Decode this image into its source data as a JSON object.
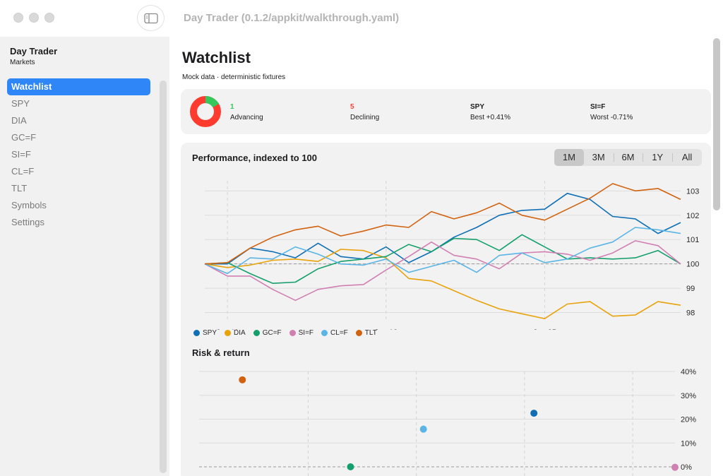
{
  "window": {
    "title": "Day Trader (0.1.2/appkit/walkthrough.yaml)"
  },
  "sidebar": {
    "app_name": "Day Trader",
    "app_subtitle": "Markets",
    "items": [
      {
        "label": "Watchlist",
        "active": true
      },
      {
        "label": "SPY"
      },
      {
        "label": "DIA"
      },
      {
        "label": "GC=F"
      },
      {
        "label": "SI=F"
      },
      {
        "label": "CL=F"
      },
      {
        "label": "TLT"
      },
      {
        "label": "Symbols"
      },
      {
        "label": "Settings"
      }
    ]
  },
  "main": {
    "title": "Watchlist",
    "subtitle": "Mock data · deterministic fixtures",
    "summary": {
      "advancing": {
        "value": "1",
        "label": "Advancing",
        "color": "#34c759"
      },
      "declining": {
        "value": "5",
        "label": "Declining",
        "color": "#ff3b30"
      },
      "best": {
        "symbol": "SPY",
        "label": "Best +0.41%"
      },
      "worst": {
        "symbol": "SI=F",
        "label": "Worst -0.71%"
      }
    },
    "performance": {
      "title": "Performance, indexed to 100",
      "ranges": [
        "1M",
        "3M",
        "6M",
        "1Y",
        "All"
      ],
      "selected_range": "1M"
    },
    "risk": {
      "title": "Risk & return"
    }
  },
  "chart_data": [
    {
      "type": "line",
      "title": "Performance, indexed to 100",
      "x_ticks": [
        {
          "label": "Jun 11",
          "index": 1
        },
        {
          "label": "Jun 18",
          "index": 8
        },
        {
          "label": "Jun 25",
          "index": 15
        }
      ],
      "ylim": [
        97.9,
        103.3
      ],
      "y_ticks": [
        98,
        99,
        100,
        101,
        102,
        103
      ],
      "baseline": 100,
      "legend_position": "bottom-left",
      "series": [
        {
          "name": "SPY",
          "color": "#0f6fb5",
          "values": [
            100,
            100,
            100.65,
            100.5,
            100.25,
            100.85,
            100.3,
            100.2,
            100.7,
            100.05,
            100.5,
            101.1,
            101.5,
            102.0,
            102.2,
            102.25,
            102.9,
            102.65,
            101.95,
            101.85,
            101.25,
            101.7
          ]
        },
        {
          "name": "DIA",
          "color": "#e8a20a",
          "values": [
            100,
            99.85,
            99.95,
            100.15,
            100.2,
            100.1,
            100.6,
            100.55,
            100.25,
            99.4,
            99.3,
            98.9,
            98.5,
            98.15,
            97.95,
            97.75,
            98.35,
            98.45,
            97.85,
            97.9,
            98.45,
            98.3
          ]
        },
        {
          "name": "GC=F",
          "color": "#14a06c",
          "values": [
            100,
            100.05,
            99.6,
            99.2,
            99.25,
            99.8,
            100.1,
            100.2,
            100.3,
            100.8,
            100.5,
            101.05,
            101.0,
            100.55,
            101.2,
            100.7,
            100.2,
            100.25,
            100.2,
            100.25,
            100.55,
            100.0
          ]
        },
        {
          "name": "SI=F",
          "color": "#d17fb3",
          "values": [
            100,
            99.5,
            99.5,
            98.95,
            98.5,
            98.95,
            99.1,
            99.15,
            99.75,
            100.3,
            100.9,
            100.35,
            100.2,
            99.8,
            100.45,
            100.5,
            100.4,
            100.15,
            100.45,
            100.95,
            100.75,
            100.0
          ]
        },
        {
          "name": "CL=F",
          "color": "#5ab5e6",
          "values": [
            100,
            99.6,
            100.25,
            100.2,
            100.7,
            100.4,
            100.0,
            99.95,
            100.2,
            99.65,
            99.9,
            100.15,
            99.65,
            100.35,
            100.45,
            100.05,
            100.2,
            100.65,
            100.9,
            101.5,
            101.4,
            101.25
          ]
        },
        {
          "name": "TLT",
          "color": "#d1620f",
          "values": [
            100,
            100.05,
            100.65,
            101.1,
            101.4,
            101.55,
            101.15,
            101.35,
            101.6,
            101.5,
            102.15,
            101.85,
            102.1,
            102.5,
            102.0,
            101.8,
            102.25,
            102.7,
            103.3,
            103.0,
            103.1,
            102.65
          ]
        }
      ]
    },
    {
      "type": "scatter",
      "title": "Risk & return",
      "ylim": [
        0,
        40
      ],
      "y_ticks": [
        0,
        10,
        20,
        30,
        40
      ],
      "y_tick_labels": [
        "0%",
        "10%",
        "20%",
        "30%",
        "40%"
      ],
      "xlim": [
        0,
        10
      ],
      "points": [
        {
          "name": "TLT",
          "color": "#d1620f",
          "x": 0.8,
          "y": 36.5
        },
        {
          "name": "GC=F",
          "color": "#14a06c",
          "x": 3.1,
          "y": 0
        },
        {
          "name": "CL=F",
          "color": "#5ab5e6",
          "x": 4.65,
          "y": 15.8
        },
        {
          "name": "SPY",
          "color": "#0f6fb5",
          "x": 7.0,
          "y": 22.5
        },
        {
          "name": "SI=F",
          "color": "#d17fb3",
          "x": 10.0,
          "y": -0.2
        }
      ]
    }
  ]
}
